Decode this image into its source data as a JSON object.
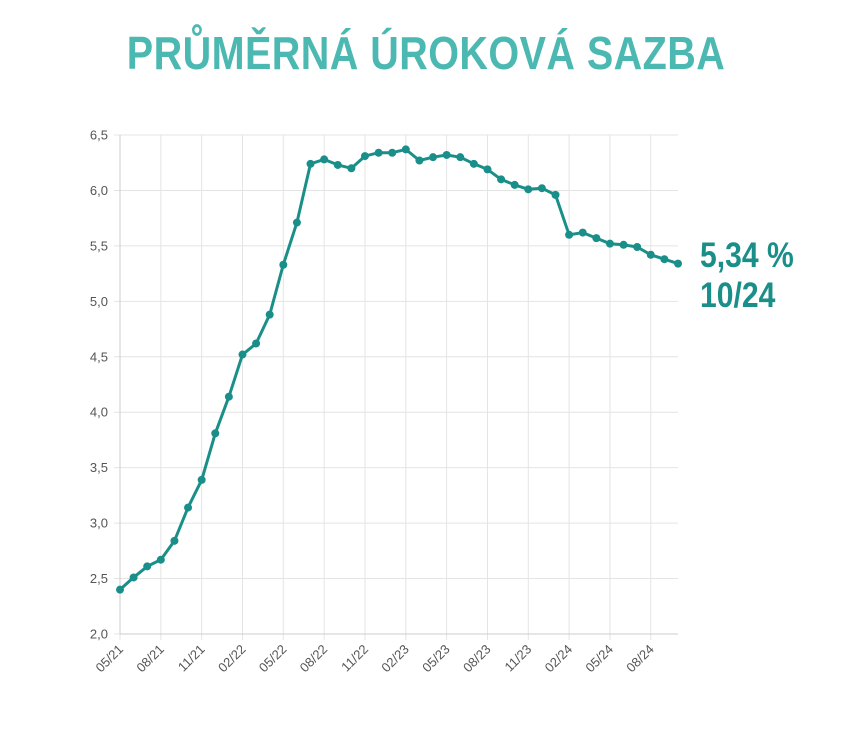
{
  "title": "PRŮMĚRNÁ ÚROKOVÁ SAZBA",
  "current": {
    "value": "5,34 %",
    "period": "10/24"
  },
  "colors": {
    "title": "#4cb8b2",
    "line": "#1a8f89",
    "grid": "#e4e4e4",
    "axis": "#cccccc",
    "tick_text": "#555555"
  },
  "chart_data": {
    "type": "line",
    "title": "",
    "xlabel": "",
    "ylabel": "",
    "ylim": [
      2.0,
      6.5
    ],
    "y_ticks": [
      "2,0",
      "2,5",
      "3,0",
      "3,5",
      "4,0",
      "4,5",
      "5,0",
      "5,5",
      "6,0",
      "6,5"
    ],
    "x_tick_labels": [
      "05/21",
      "08/21",
      "11/21",
      "02/22",
      "05/22",
      "08/22",
      "11/22",
      "02/23",
      "05/23",
      "08/23",
      "11/23",
      "02/24",
      "05/24",
      "08/24"
    ],
    "grid": true,
    "x": [
      "05/21",
      "06/21",
      "07/21",
      "08/21",
      "09/21",
      "10/21",
      "11/21",
      "12/21",
      "01/22",
      "02/22",
      "03/22",
      "04/22",
      "05/22",
      "06/22",
      "07/22",
      "08/22",
      "09/22",
      "10/22",
      "11/22",
      "12/22",
      "01/23",
      "02/23",
      "03/23",
      "04/23",
      "05/23",
      "06/23",
      "07/23",
      "08/23",
      "09/23",
      "10/23",
      "11/23",
      "12/23",
      "01/24",
      "02/24",
      "03/24",
      "04/24",
      "05/24",
      "06/24",
      "07/24",
      "08/24",
      "09/24",
      "10/24"
    ],
    "series": [
      {
        "values": [
          2.4,
          2.51,
          2.61,
          2.67,
          2.84,
          3.14,
          3.39,
          3.81,
          4.14,
          4.52,
          4.62,
          4.88,
          5.33,
          5.71,
          6.24,
          6.28,
          6.23,
          6.2,
          6.31,
          6.34,
          6.34,
          6.37,
          6.27,
          6.3,
          6.32,
          6.3,
          6.24,
          6.19,
          6.1,
          6.05,
          6.01,
          6.02,
          5.96,
          5.6,
          5.62,
          5.57,
          5.52,
          5.51,
          5.49,
          5.42,
          5.38,
          5.34
        ]
      }
    ]
  }
}
